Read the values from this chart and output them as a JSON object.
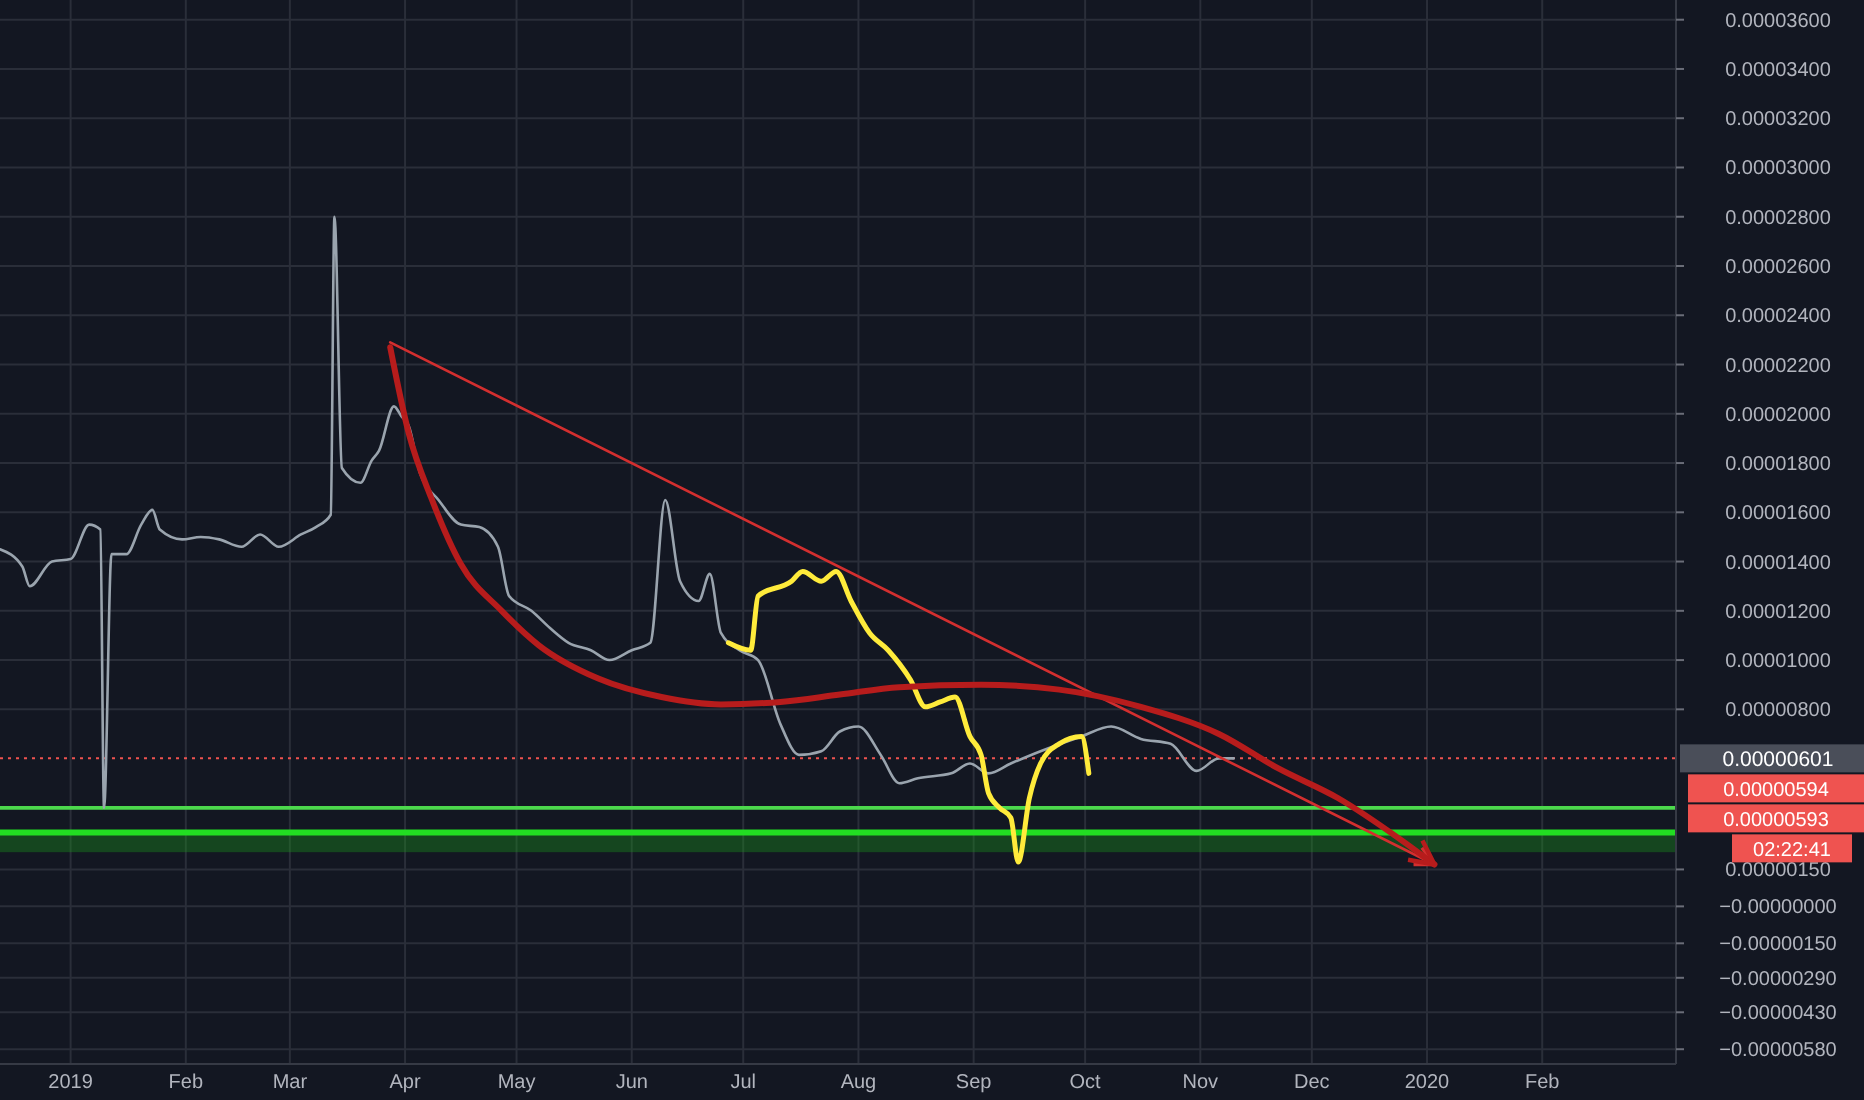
{
  "chart_data": {
    "type": "line",
    "grid": true,
    "line_style": "solid",
    "marker": "none",
    "xlim": [
      "2018-12-13",
      "2020-03-08"
    ],
    "xticks": [
      {
        "value": "2019-01-01",
        "label": "2019"
      },
      {
        "value": "2019-02-01",
        "label": "Feb"
      },
      {
        "value": "2019-03-01",
        "label": "Mar"
      },
      {
        "value": "2019-04-01",
        "label": "Apr"
      },
      {
        "value": "2019-05-01",
        "label": "May"
      },
      {
        "value": "2019-06-01",
        "label": "Jun"
      },
      {
        "value": "2019-07-01",
        "label": "Jul"
      },
      {
        "value": "2019-08-01",
        "label": "Aug"
      },
      {
        "value": "2019-09-01",
        "label": "Sep"
      },
      {
        "value": "2019-10-01",
        "label": "Oct"
      },
      {
        "value": "2019-11-01",
        "label": "Nov"
      },
      {
        "value": "2019-12-01",
        "label": "Dec"
      },
      {
        "value": "2020-01-01",
        "label": "2020"
      },
      {
        "value": "2020-02-01",
        "label": "Feb"
      }
    ],
    "ylim": [
      -6.4e-06,
      3.68e-05
    ],
    "yticks": [
      {
        "value": 3.6e-05,
        "label": "0.00003600"
      },
      {
        "value": 3.4e-05,
        "label": "0.00003400"
      },
      {
        "value": 3.2e-05,
        "label": "0.00003200"
      },
      {
        "value": 3e-05,
        "label": "0.00003000"
      },
      {
        "value": 2.8e-05,
        "label": "0.00002800"
      },
      {
        "value": 2.6e-05,
        "label": "0.00002600"
      },
      {
        "value": 2.4e-05,
        "label": "0.00002400"
      },
      {
        "value": 2.2e-05,
        "label": "0.00002200"
      },
      {
        "value": 2e-05,
        "label": "0.00002000"
      },
      {
        "value": 1.8e-05,
        "label": "0.00001800"
      },
      {
        "value": 1.6e-05,
        "label": "0.00001600"
      },
      {
        "value": 1.4e-05,
        "label": "0.00001400"
      },
      {
        "value": 1.2e-05,
        "label": "0.00001200"
      },
      {
        "value": 1e-05,
        "label": "0.00001000"
      },
      {
        "value": 8e-06,
        "label": "0.00000800"
      },
      {
        "value": 1.5e-06,
        "label": "0.00000150"
      },
      {
        "value": 0,
        "label": "−0.00000000"
      },
      {
        "value": -1.5e-06,
        "label": "−0.00000150"
      },
      {
        "value": -2.9e-06,
        "label": "−0.00000290"
      },
      {
        "value": -4.3e-06,
        "label": "−0.00000430"
      },
      {
        "value": -5.8e-06,
        "label": "−0.00000580"
      }
    ],
    "series": [
      {
        "color": "#9aa4ae",
        "x": [
          "2018-12-13",
          "2018-12-19",
          "2018-12-21",
          "2018-12-27",
          "2019-01-01",
          "2019-01-06",
          "2019-01-09",
          "2019-01-10",
          "2019-01-12",
          "2019-01-16",
          "2019-01-20",
          "2019-01-23",
          "2019-01-25",
          "2019-01-31",
          "2019-02-05",
          "2019-02-10",
          "2019-02-16",
          "2019-02-21",
          "2019-02-26",
          "2019-03-04",
          "2019-03-08",
          "2019-03-12",
          "2019-03-13",
          "2019-03-15",
          "2019-03-20",
          "2019-03-23",
          "2019-03-25",
          "2019-03-29",
          "2019-03-31",
          "2019-04-02",
          "2019-04-05",
          "2019-04-10",
          "2019-04-16",
          "2019-04-21",
          "2019-04-26",
          "2019-04-29",
          "2019-05-05",
          "2019-05-10",
          "2019-05-15",
          "2019-05-21",
          "2019-05-26",
          "2019-06-01",
          "2019-06-06",
          "2019-06-10",
          "2019-06-14",
          "2019-06-19",
          "2019-06-22",
          "2019-06-25",
          "2019-06-30",
          "2019-07-05",
          "2019-07-11",
          "2019-07-16",
          "2019-07-22",
          "2019-07-27",
          "2019-08-01",
          "2019-08-07",
          "2019-08-12",
          "2019-08-17",
          "2019-08-26",
          "2019-08-31",
          "2019-09-05",
          "2019-09-11",
          "2019-09-19",
          "2019-09-30",
          "2019-10-08",
          "2019-10-16",
          "2019-10-24",
          "2019-10-31",
          "2019-11-06",
          "2019-11-10"
        ],
        "values": [
          1.45e-05,
          1.38e-05,
          1.3e-05,
          1.4e-05,
          1.41e-05,
          1.55e-05,
          1.53e-05,
          4e-06,
          1.43e-05,
          1.43e-05,
          1.55e-05,
          1.61e-05,
          1.53e-05,
          1.49e-05,
          1.5e-05,
          1.49e-05,
          1.46e-05,
          1.51e-05,
          1.46e-05,
          1.51e-05,
          1.54e-05,
          1.59e-05,
          2.8e-05,
          1.78e-05,
          1.72e-05,
          1.81e-05,
          1.85e-05,
          2.03e-05,
          1.99e-05,
          1.95e-05,
          1.76e-05,
          1.65e-05,
          1.55e-05,
          1.54e-05,
          1.46e-05,
          1.26e-05,
          1.2e-05,
          1.13e-05,
          1.07e-05,
          1.04e-05,
          1e-05,
          1.04e-05,
          1.07e-05,
          1.65e-05,
          1.32e-05,
          1.24e-05,
          1.35e-05,
          1.11e-05,
          1.04e-05,
          1e-05,
          7.4e-06,
          6.15e-06,
          6.3e-06,
          7.1e-06,
          7.3e-06,
          6.15e-06,
          5e-06,
          5.2e-06,
          5.4e-06,
          5.8e-06,
          5.4e-06,
          5.8e-06,
          6.3e-06,
          6.9e-06,
          7.3e-06,
          6.8e-06,
          6.6e-06,
          5.5e-06,
          6.01e-06,
          6.01e-06
        ]
      },
      {
        "color": "#ffeb3b",
        "x": [
          "2019-06-27",
          "2019-07-03",
          "2019-07-05",
          "2019-07-14",
          "2019-07-17",
          "2019-07-22",
          "2019-07-26",
          "2019-07-30",
          "2019-08-04",
          "2019-08-09",
          "2019-08-15",
          "2019-08-19",
          "2019-08-23",
          "2019-08-27",
          "2019-08-31",
          "2019-09-03",
          "2019-09-05",
          "2019-09-08",
          "2019-09-11",
          "2019-09-13",
          "2019-09-16",
          "2019-09-19",
          "2019-09-24",
          "2019-09-30",
          "2019-10-02"
        ],
        "values": [
          1.07e-05,
          1.04e-05,
          1.26e-05,
          1.32e-05,
          1.36e-05,
          1.32e-05,
          1.36e-05,
          1.24e-05,
          1.11e-05,
          1.04e-05,
          9.2e-06,
          8.1e-06,
          8.3e-06,
          8.5e-06,
          6.9e-06,
          6.15e-06,
          4.6e-06,
          4e-06,
          3.6e-06,
          1.8e-06,
          4.4e-06,
          5.8e-06,
          6.6e-06,
          6.9e-06,
          5.4e-06
        ]
      },
      {
        "color": "#d32f2f",
        "x": [
          "2019-03-28",
          "2020-01-03"
        ],
        "values": [
          2.29e-05,
          1.7e-06
        ]
      },
      {
        "color": "#b71c1c",
        "x": [
          "2019-03-28",
          "2019-04-02",
          "2019-04-08",
          "2019-04-16",
          "2019-04-27",
          "2019-05-07",
          "2019-05-23",
          "2019-06-09",
          "2019-06-25",
          "2019-07-11",
          "2019-07-27",
          "2019-08-12",
          "2019-09-03",
          "2019-09-24",
          "2019-10-16",
          "2019-11-06",
          "2019-11-22",
          "2019-12-08",
          "2019-12-25",
          "2020-01-03"
        ],
        "values": [
          2.27e-05,
          1.92e-05,
          1.66e-05,
          1.39e-05,
          1.2e-05,
          1.06e-05,
          9.25e-06,
          8.5e-06,
          8.2e-06,
          8.3e-06,
          8.6e-06,
          8.9e-06,
          9e-06,
          8.8e-06,
          8.1e-06,
          7e-06,
          5.6e-06,
          4.4e-06,
          2.7e-06,
          1.7e-06
        ]
      }
    ],
    "ref_lines": [
      {
        "axis": "y",
        "value": 6.01e-06,
        "label": "0.00000601",
        "color": "#ef5350",
        "line_style": "dotted"
      },
      {
        "axis": "y",
        "value": 4e-06,
        "label": null,
        "color": "#4cd94c",
        "line_style": "solid"
      },
      {
        "axis": "y",
        "value": 3e-06,
        "label": null,
        "color": "#22dd22",
        "line_style": "solid"
      }
    ],
    "bands": [
      {
        "axis": "y",
        "from": 2.2e-06,
        "to": 3e-06,
        "label": null,
        "color": "#1b9e1b"
      }
    ],
    "annotations": [
      "0.00000594",
      "0.00000593",
      "02:22:41"
    ]
  }
}
